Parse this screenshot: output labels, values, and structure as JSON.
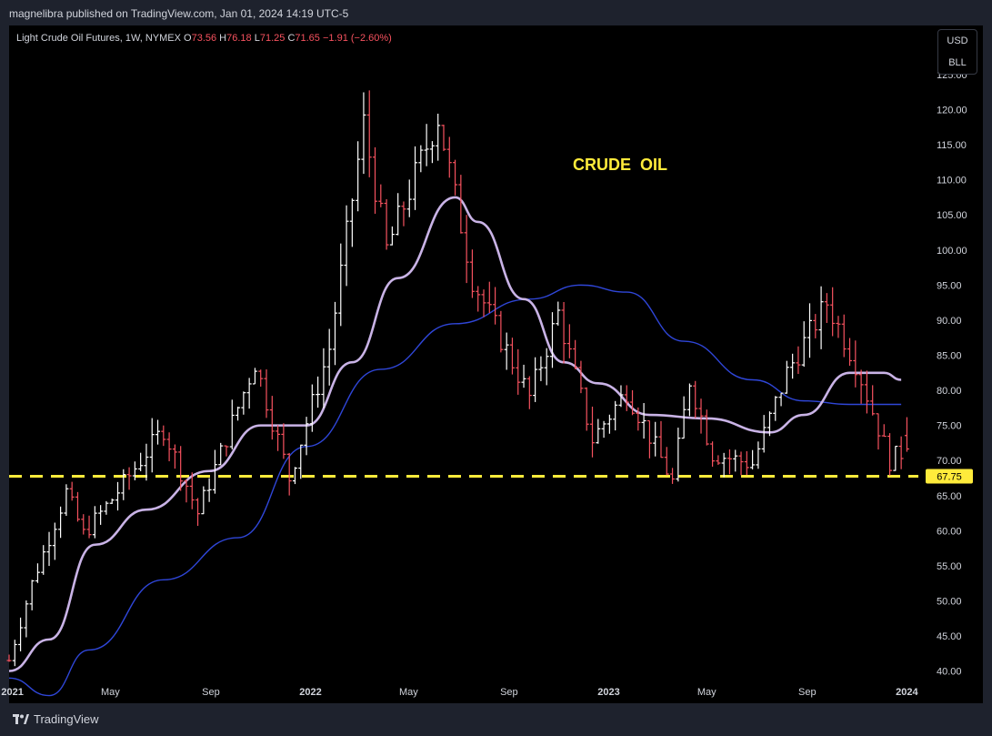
{
  "header": {
    "published": "magnelibra published on TradingView.com, Jan 01, 2024 14:19 UTC-5"
  },
  "legend": {
    "symbol": "Light Crude Oil Futures, 1W, NYMEX",
    "o_label": "O",
    "o_value": "73.56",
    "h_label": "H",
    "h_value": "76.18",
    "l_label": "L",
    "l_value": "71.25",
    "c_label": "C",
    "c_value": "71.65",
    "change": "−1.91 (−2.60%)"
  },
  "unit_box": {
    "currency": "USD",
    "unit": "BLL"
  },
  "footer": {
    "brand": "TradingView"
  },
  "colors": {
    "background": "#000000",
    "bull": "#ffffff",
    "bear": "#f7525f",
    "ma_fast": "#c9b3e6",
    "ma_slow": "#2f46d8",
    "support": "#ffeb3b",
    "axis_text": "#d1d4dc"
  },
  "chart_data": {
    "type": "ohlc",
    "title": "CRUDE  OIL",
    "interval": "1W",
    "y_axis": {
      "ylim": [
        38,
        132
      ],
      "ticks": [
        "40.00",
        "45.00",
        "50.00",
        "55.00",
        "60.00",
        "65.00",
        "70.00",
        "75.00",
        "80.00",
        "85.00",
        "90.00",
        "95.00",
        "100.00",
        "105.00",
        "110.00",
        "115.00",
        "120.00",
        "125.00"
      ],
      "position": "right"
    },
    "x_axis": {
      "range": [
        "2020-12-28",
        "2024-01-15"
      ],
      "ticks": [
        {
          "date": "2021-01-01",
          "label": "2021"
        },
        {
          "date": "2021-05-01",
          "label": "May"
        },
        {
          "date": "2021-09-01",
          "label": "Sep"
        },
        {
          "date": "2022-01-01",
          "label": "2022"
        },
        {
          "date": "2022-05-01",
          "label": "May"
        },
        {
          "date": "2022-09-01",
          "label": "Sep"
        },
        {
          "date": "2023-01-01",
          "label": "2023"
        },
        {
          "date": "2023-05-01",
          "label": "May"
        },
        {
          "date": "2023-09-01",
          "label": "Sep"
        },
        {
          "date": "2024-01-01",
          "label": "2024"
        }
      ]
    },
    "grid": false,
    "support_line": {
      "value": 67.75,
      "label": "67.75"
    },
    "anchors": [
      [
        "2020-12-28",
        41.5
      ],
      [
        "2021-01-25",
        52.5
      ],
      [
        "2021-03-08",
        65.5
      ],
      [
        "2021-03-29",
        59.5
      ],
      [
        "2021-05-03",
        64.5
      ],
      [
        "2021-07-05",
        74.5
      ],
      [
        "2021-08-16",
        62.5
      ],
      [
        "2021-10-25",
        84.0
      ],
      [
        "2021-12-06",
        67.5
      ],
      [
        "2022-01-24",
        86.0
      ],
      [
        "2022-03-07",
        118.0
      ],
      [
        "2022-04-04",
        100.0
      ],
      [
        "2022-06-06",
        119.0
      ],
      [
        "2022-07-18",
        96.0
      ],
      [
        "2022-08-15",
        89.0
      ],
      [
        "2022-09-26",
        79.0
      ],
      [
        "2022-10-31",
        91.0
      ],
      [
        "2022-12-12",
        73.0
      ],
      [
        "2023-01-23",
        80.0
      ],
      [
        "2023-03-20",
        67.0
      ],
      [
        "2023-04-10",
        81.5
      ],
      [
        "2023-05-08",
        71.0
      ],
      [
        "2023-06-26",
        69.5
      ],
      [
        "2023-08-07",
        82.5
      ],
      [
        "2023-09-25",
        92.5
      ],
      [
        "2023-10-30",
        84.0
      ],
      [
        "2023-12-11",
        70.0
      ],
      [
        "2024-01-01",
        71.65
      ]
    ],
    "last_bar": {
      "o": 73.56,
      "h": 76.18,
      "l": 71.25,
      "c": 71.65
    },
    "series": [
      {
        "name": "MA fast",
        "points": [
          [
            "2020-12-28",
            40.0
          ],
          [
            "2021-02-15",
            44.5
          ],
          [
            "2021-04-12",
            58.0
          ],
          [
            "2021-06-14",
            63.0
          ],
          [
            "2021-08-30",
            68.5
          ],
          [
            "2021-11-01",
            75.0
          ],
          [
            "2021-12-27",
            75.0
          ],
          [
            "2022-02-21",
            84.0
          ],
          [
            "2022-04-18",
            96.0
          ],
          [
            "2022-06-27",
            107.5
          ],
          [
            "2022-07-25",
            104.0
          ],
          [
            "2022-09-19",
            93.0
          ],
          [
            "2022-11-07",
            84.0
          ],
          [
            "2022-12-19",
            81.0
          ],
          [
            "2023-02-20",
            76.5
          ],
          [
            "2023-05-01",
            76.0
          ],
          [
            "2023-07-17",
            74.0
          ],
          [
            "2023-08-28",
            76.5
          ],
          [
            "2023-10-23",
            82.5
          ],
          [
            "2023-12-04",
            82.5
          ],
          [
            "2023-12-25",
            81.5
          ]
        ]
      },
      {
        "name": "MA slow",
        "points": [
          [
            "2020-12-28",
            39.0
          ],
          [
            "2021-02-15",
            36.5
          ],
          [
            "2021-04-05",
            43.0
          ],
          [
            "2021-07-05",
            53.0
          ],
          [
            "2021-10-04",
            59.0
          ],
          [
            "2021-12-27",
            72.0
          ],
          [
            "2022-03-28",
            83.0
          ],
          [
            "2022-06-27",
            89.5
          ],
          [
            "2022-09-26",
            93.0
          ],
          [
            "2022-11-28",
            95.0
          ],
          [
            "2023-01-23",
            94.0
          ],
          [
            "2023-04-03",
            87.0
          ],
          [
            "2023-06-26",
            81.5
          ],
          [
            "2023-08-28",
            78.5
          ],
          [
            "2023-10-23",
            78.0
          ],
          [
            "2023-12-25",
            78.0
          ]
        ]
      }
    ]
  }
}
